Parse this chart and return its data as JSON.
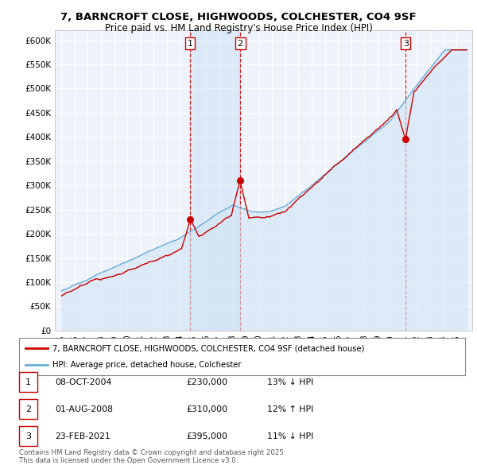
{
  "title": "7, BARNCROFT CLOSE, HIGHWOODS, COLCHESTER, CO4 9SF",
  "subtitle": "Price paid vs. HM Land Registry's House Price Index (HPI)",
  "legend_line1": "7, BARNCROFT CLOSE, HIGHWOODS, COLCHESTER, CO4 9SF (detached house)",
  "legend_line2": "HPI: Average price, detached house, Colchester",
  "footer": "Contains HM Land Registry data © Crown copyright and database right 2025.\nThis data is licensed under the Open Government Licence v3.0.",
  "transactions": [
    {
      "num": 1,
      "date": "08-OCT-2004",
      "price": "£230,000",
      "hpi": "13% ↓ HPI",
      "x": 2004.77,
      "price_val": 230000
    },
    {
      "num": 2,
      "date": "01-AUG-2008",
      "price": "£310,000",
      "hpi": "12% ↑ HPI",
      "x": 2008.58,
      "price_val": 310000
    },
    {
      "num": 3,
      "date": "23-FEB-2021",
      "price": "£395,000",
      "hpi": "11% ↓ HPI",
      "x": 2021.14,
      "price_val": 395000
    }
  ],
  "hpi_color": "#6baed6",
  "hpi_fill_color": "#d0e4f5",
  "price_color": "#cc0000",
  "vline_color": "#cc0000",
  "ylim": [
    0,
    620000
  ],
  "xlim_start": 1994.5,
  "xlim_end": 2026.2,
  "background_color": "#ffffff",
  "plot_bg_color": "#eef2fb",
  "grid_color": "#ffffff",
  "highlight_fill": "#cce0f5"
}
